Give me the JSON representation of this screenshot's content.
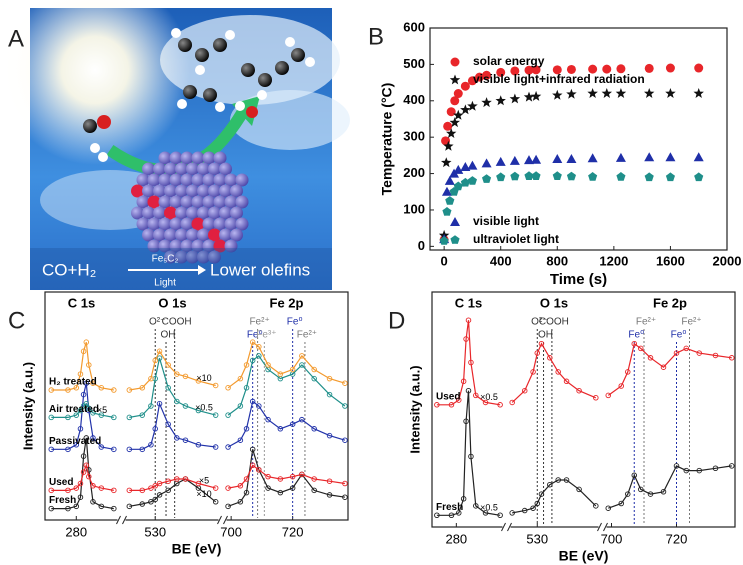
{
  "figure": {
    "panel_labels": [
      "A",
      "B",
      "C",
      "D"
    ],
    "illustration": {
      "reactants": "CO+H₂",
      "catalyst": "Fe₅C₂",
      "condition": "Light",
      "product": "Lower olefins"
    }
  },
  "chart_data": [
    {
      "type": "scatter",
      "xlabel": "Time (s)",
      "ylabel": "Temperature (°C)",
      "xlim": [
        -100,
        2000
      ],
      "ylim": [
        -10,
        600
      ],
      "xticks": [
        0,
        400,
        800,
        1200,
        1600,
        2000
      ],
      "yticks": [
        0,
        100,
        200,
        300,
        400,
        500,
        600
      ],
      "series": [
        {
          "name": "solar energy",
          "color": "#e8262a",
          "marker": "circle",
          "x": [
            0,
            10,
            25,
            50,
            75,
            100,
            150,
            200,
            250,
            300,
            400,
            500,
            600,
            650,
            800,
            900,
            1050,
            1150,
            1250,
            1450,
            1600,
            1800
          ],
          "values": [
            18,
            290,
            330,
            370,
            400,
            420,
            440,
            455,
            465,
            470,
            478,
            482,
            484,
            485,
            485,
            486,
            487,
            487,
            488,
            489,
            490,
            490
          ]
        },
        {
          "name": "visible light+infrared radiation",
          "color": "#111111",
          "marker": "star",
          "x": [
            0,
            15,
            30,
            50,
            75,
            100,
            150,
            200,
            300,
            400,
            500,
            600,
            650,
            800,
            900,
            1050,
            1150,
            1250,
            1450,
            1600,
            1800
          ],
          "values": [
            30,
            230,
            275,
            310,
            340,
            360,
            375,
            385,
            395,
            400,
            405,
            410,
            412,
            415,
            418,
            420,
            420,
            420,
            420,
            420,
            420
          ]
        },
        {
          "name": "visible light",
          "color": "#1f2fa8",
          "marker": "triangle",
          "x": [
            0,
            20,
            40,
            70,
            100,
            150,
            200,
            300,
            400,
            500,
            600,
            650,
            800,
            900,
            1050,
            1250,
            1450,
            1600,
            1800
          ],
          "values": [
            20,
            150,
            180,
            200,
            210,
            218,
            222,
            228,
            232,
            235,
            237,
            238,
            240,
            240,
            242,
            243,
            245,
            245,
            245
          ]
        },
        {
          "name": "ultraviolet light",
          "color": "#1f8f8a",
          "marker": "pentagon",
          "x": [
            0,
            20,
            40,
            70,
            100,
            150,
            200,
            300,
            400,
            500,
            600,
            650,
            800,
            900,
            1050,
            1250,
            1450,
            1600,
            1800
          ],
          "values": [
            15,
            95,
            125,
            150,
            165,
            175,
            180,
            185,
            190,
            192,
            193,
            193,
            193,
            192,
            191,
            191,
            190,
            190,
            190
          ]
        }
      ]
    },
    {
      "type": "line",
      "xlabel": "BE (eV)",
      "ylabel": "Intensity (a.u.)",
      "ylim": [
        0,
        100
      ],
      "segments": [
        {
          "title": "C 1s",
          "xlim": [
            265,
            300
          ],
          "xticks": [
            280
          ],
          "x": [
            268,
            276,
            280,
            282,
            283.5,
            284.8,
            286,
            288,
            292,
            298
          ]
        },
        {
          "title": "O 1s",
          "xlim": [
            523,
            545
          ],
          "xticks": [
            530
          ],
          "x": [
            524,
            527,
            529,
            530,
            531,
            533,
            535,
            537,
            540,
            544
          ]
        },
        {
          "title": "Fe 2p",
          "xlim": [
            698,
            738
          ],
          "xticks": [
            700,
            720
          ],
          "x": [
            699,
            703,
            705,
            707,
            709,
            712,
            716,
            720,
            723,
            727,
            732,
            737
          ]
        }
      ],
      "series": [
        {
          "name": "Fresh",
          "color": "#222222",
          "scale_labels": [
            null,
            "×10",
            null
          ],
          "values": [
            [
              5,
              5,
              6,
              10,
              28,
              36,
              22,
              8,
              6,
              5
            ],
            [
              6,
              7,
              8,
              9,
              11,
              13,
              16,
              18,
              14,
              8
            ],
            [
              6,
              8,
              12,
              31,
              22,
              14,
              12,
              14,
              20,
              13,
              11,
              10
            ]
          ]
        },
        {
          "name": "Used",
          "color": "#e8262a",
          "scale_labels": [
            null,
            "×5",
            null
          ],
          "values": [
            [
              13,
              13,
              14,
              16,
              21,
              24,
              19,
              15,
              14,
              13
            ],
            [
              13,
              13,
              14,
              15,
              16,
              17,
              18,
              18,
              16,
              14
            ],
            [
              14,
              15,
              18,
              24,
              22,
              19,
              18,
              19,
              20,
              18,
              17,
              16
            ]
          ]
        },
        {
          "name": "Passivated",
          "color": "#2233aa",
          "values": [
            [
              31,
              31,
              33,
              40,
              55,
              60,
              48,
              36,
              32,
              31
            ],
            [
              31,
              31,
              33,
              40,
              51,
              42,
              36,
              35,
              33,
              32
            ],
            [
              32,
              35,
              40,
              52,
              50,
              44,
              40,
              42,
              44,
              40,
              37,
              35
            ]
          ]
        },
        {
          "name": "Air treated",
          "color": "#1f8f8a",
          "scale_labels": [
            "×5",
            "×0.5",
            null
          ],
          "values": [
            [
              45,
              45,
              46,
              48,
              50,
              51,
              49,
              47,
              46,
              45
            ],
            [
              45,
              46,
              50,
              62,
              71,
              58,
              52,
              50,
              48,
              46
            ],
            [
              46,
              50,
              58,
              70,
              72,
              66,
              62,
              64,
              68,
              62,
              55,
              50
            ]
          ]
        },
        {
          "name": "H₂ treated",
          "color": "#f39a2e",
          "scale_labels": [
            null,
            "×10",
            null
          ],
          "values": [
            [
              57,
              57,
              58,
              64,
              74,
              78,
              68,
              60,
              58,
              57
            ],
            [
              57,
              58,
              62,
              70,
              74,
              68,
              64,
              63,
              61,
              59
            ],
            [
              58,
              62,
              68,
              78,
              76,
              68,
              64,
              66,
              72,
              66,
              62,
              60
            ]
          ]
        }
      ],
      "reference_lines": [
        {
          "x": 530,
          "label": "O²⁻",
          "color": "#333333"
        },
        {
          "x": 532.5,
          "label": "OH",
          "color": "#333333"
        },
        {
          "x": 534.5,
          "label": "COOH",
          "color": "#333333"
        },
        {
          "x": 707,
          "label": "Fe⁰",
          "color": "#1f2fa8"
        },
        {
          "x": 708.6,
          "label": "Fe²⁺",
          "color": "#777777"
        },
        {
          "x": 710.8,
          "label": "Fe³⁺",
          "color": "#999999"
        },
        {
          "x": 720,
          "label": "Fe⁰",
          "color": "#1f2fa8"
        },
        {
          "x": 724,
          "label": "Fe²⁺",
          "color": "#777777"
        }
      ]
    },
    {
      "type": "line",
      "xlabel": "BE (eV)",
      "ylabel": "Intensity (a.u.)",
      "ylim": [
        0,
        100
      ],
      "segments": [
        {
          "title": "C 1s",
          "xlim": [
            270,
            300
          ],
          "xticks": [
            280
          ],
          "x": [
            272,
            278,
            281,
            283,
            284,
            285,
            286,
            288,
            292,
            298
          ]
        },
        {
          "title": "O 1s",
          "xlim": [
            523,
            545
          ],
          "xticks": [
            530
          ],
          "x": [
            524,
            527,
            529,
            530,
            531,
            533,
            535,
            537,
            540,
            544
          ]
        },
        {
          "title": "Fe 2p",
          "xlim": [
            698,
            738
          ],
          "xticks": [
            700,
            720
          ],
          "x": [
            699,
            703,
            705,
            707,
            709,
            712,
            716,
            720,
            723,
            727,
            732,
            737
          ]
        }
      ],
      "series": [
        {
          "name": "Fresh",
          "color": "#222222",
          "scale_labels": [
            "×0.5",
            null,
            null
          ],
          "values": [
            [
              5,
              5,
              6,
              12,
              45,
              58,
              30,
              9,
              6,
              5
            ],
            [
              6,
              7,
              8,
              10,
              14,
              18,
              20,
              20,
              16,
              9
            ],
            [
              8,
              10,
              14,
              22,
              16,
              14,
              15,
              26,
              24,
              24,
              25,
              26
            ]
          ]
        },
        {
          "name": "Used",
          "color": "#e8262a",
          "scale_labels": [
            "×0.5",
            null,
            null
          ],
          "values": [
            [
              52,
              52,
              54,
              62,
              80,
              88,
              70,
              56,
              53,
              52
            ],
            [
              53,
              58,
              66,
              74,
              78,
              72,
              66,
              62,
              58,
              55
            ],
            [
              56,
              60,
              66,
              78,
              76,
              72,
              68,
              74,
              76,
              74,
              73,
              72
            ]
          ]
        }
      ],
      "reference_lines": [
        {
          "x": 530,
          "label": "O²⁻",
          "color": "#333333"
        },
        {
          "x": 531.5,
          "label": "OH",
          "color": "#333333"
        },
        {
          "x": 533.5,
          "label": "COOH",
          "color": "#333333"
        },
        {
          "x": 707,
          "label": "Fe⁰",
          "color": "#1f2fa8"
        },
        {
          "x": 710,
          "label": "Fe²⁺",
          "color": "#777777"
        },
        {
          "x": 720,
          "label": "Fe⁰",
          "color": "#1f2fa8"
        },
        {
          "x": 724,
          "label": "Fe²⁺",
          "color": "#777777"
        }
      ]
    }
  ]
}
